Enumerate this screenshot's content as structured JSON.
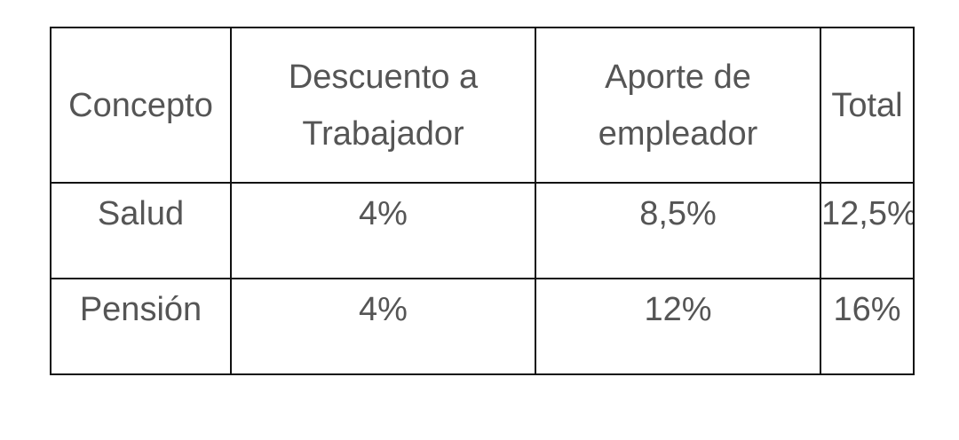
{
  "table": {
    "header": [
      "Concepto",
      "Descuento a Trabajador",
      "Aporte de empleador",
      "Total"
    ],
    "rows": [
      [
        "Salud",
        "4%",
        "8,5%",
        "12,5%"
      ],
      [
        "Pensión",
        "4%",
        "12%",
        "16%"
      ]
    ]
  }
}
